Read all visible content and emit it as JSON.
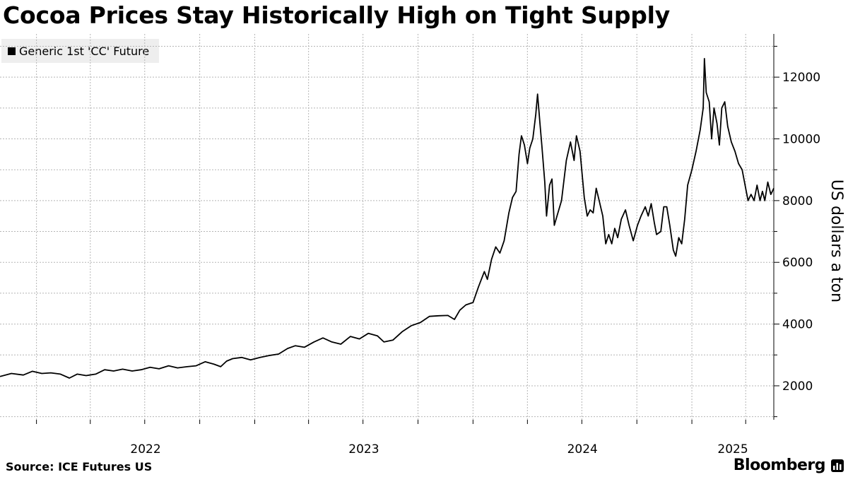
{
  "title": "Cocoa Prices Stay Historically High on Tight Supply",
  "source": "Source: ICE Futures US",
  "brand": "Bloomberg",
  "icons": {
    "brand": "bloomberg-chart-icon",
    "legend": "square-swatch-icon"
  },
  "colors": {
    "line": "#000000",
    "grid": "#b5b5b5",
    "legend_bg": "#eeeeee"
  },
  "chart_data": {
    "type": "line",
    "title": "Cocoa Prices Stay Historically High on Tight Supply",
    "ylabel": "US dollars a ton",
    "xlabel": "",
    "ylim": [
      900,
      13400
    ],
    "xlim": [
      "2021-11-01",
      "2025-05-18"
    ],
    "y_ticks": [
      2000,
      4000,
      6000,
      8000,
      10000,
      12000
    ],
    "x_tick_labels": [
      {
        "date": "2022-01-01",
        "label": "2022"
      },
      {
        "date": "2023-01-01",
        "label": "2023"
      },
      {
        "date": "2024-01-01",
        "label": "2024"
      },
      {
        "date": "2025-01-01",
        "label": "2025"
      }
    ],
    "grid": true,
    "legend": "top-left",
    "series": [
      {
        "name": "Generic 1st 'CC' Future",
        "points": [
          [
            "2021-11-01",
            2300
          ],
          [
            "2021-11-20",
            2400
          ],
          [
            "2021-12-10",
            2350
          ],
          [
            "2021-12-25",
            2470
          ],
          [
            "2022-01-10",
            2400
          ],
          [
            "2022-01-25",
            2420
          ],
          [
            "2022-02-10",
            2380
          ],
          [
            "2022-02-25",
            2250
          ],
          [
            "2022-03-10",
            2380
          ],
          [
            "2022-03-25",
            2330
          ],
          [
            "2022-04-10",
            2380
          ],
          [
            "2022-04-25",
            2520
          ],
          [
            "2022-05-10",
            2480
          ],
          [
            "2022-05-25",
            2540
          ],
          [
            "2022-06-10",
            2480
          ],
          [
            "2022-06-25",
            2520
          ],
          [
            "2022-07-10",
            2600
          ],
          [
            "2022-07-25",
            2550
          ],
          [
            "2022-08-10",
            2650
          ],
          [
            "2022-08-25",
            2580
          ],
          [
            "2022-09-10",
            2620
          ],
          [
            "2022-09-25",
            2650
          ],
          [
            "2022-10-10",
            2780
          ],
          [
            "2022-10-25",
            2700
          ],
          [
            "2022-11-05",
            2620
          ],
          [
            "2022-11-15",
            2800
          ],
          [
            "2022-11-25",
            2880
          ],
          [
            "2022-12-10",
            2920
          ],
          [
            "2022-12-25",
            2840
          ],
          [
            "2023-01-10",
            2920
          ],
          [
            "2023-01-25",
            2980
          ],
          [
            "2023-02-10",
            3030
          ],
          [
            "2023-02-25",
            3210
          ],
          [
            "2023-03-10",
            3300
          ],
          [
            "2023-03-25",
            3250
          ],
          [
            "2023-04-10",
            3420
          ],
          [
            "2023-04-25",
            3550
          ],
          [
            "2023-05-10",
            3420
          ],
          [
            "2023-05-25",
            3350
          ],
          [
            "2023-06-10",
            3600
          ],
          [
            "2023-06-25",
            3520
          ],
          [
            "2023-07-10",
            3700
          ],
          [
            "2023-07-25",
            3620
          ],
          [
            "2023-08-05",
            3420
          ],
          [
            "2023-08-20",
            3480
          ],
          [
            "2023-09-05",
            3760
          ],
          [
            "2023-09-20",
            3950
          ],
          [
            "2023-10-05",
            4050
          ],
          [
            "2023-10-20",
            4250
          ],
          [
            "2023-11-05",
            4270
          ],
          [
            "2023-11-20",
            4280
          ],
          [
            "2023-12-01",
            4150
          ],
          [
            "2023-12-10",
            4450
          ],
          [
            "2023-12-20",
            4620
          ],
          [
            "2024-01-01",
            4700
          ],
          [
            "2024-01-10",
            5200
          ],
          [
            "2024-01-20",
            5700
          ],
          [
            "2024-01-25",
            5450
          ],
          [
            "2024-02-01",
            6100
          ],
          [
            "2024-02-08",
            6500
          ],
          [
            "2024-02-15",
            6300
          ],
          [
            "2024-02-22",
            6700
          ],
          [
            "2024-03-01",
            7600
          ],
          [
            "2024-03-07",
            8100
          ],
          [
            "2024-03-13",
            8300
          ],
          [
            "2024-03-18",
            9500
          ],
          [
            "2024-03-22",
            10100
          ],
          [
            "2024-03-27",
            9800
          ],
          [
            "2024-04-01",
            9200
          ],
          [
            "2024-04-05",
            9700
          ],
          [
            "2024-04-10",
            10000
          ],
          [
            "2024-04-15",
            10800
          ],
          [
            "2024-04-18",
            11450
          ],
          [
            "2024-04-22",
            10500
          ],
          [
            "2024-04-25",
            9800
          ],
          [
            "2024-04-30",
            8600
          ],
          [
            "2024-05-03",
            7500
          ],
          [
            "2024-05-08",
            8500
          ],
          [
            "2024-05-12",
            8700
          ],
          [
            "2024-05-16",
            7200
          ],
          [
            "2024-05-22",
            7600
          ],
          [
            "2024-05-28",
            8000
          ],
          [
            "2024-06-05",
            9300
          ],
          [
            "2024-06-12",
            9900
          ],
          [
            "2024-06-18",
            9300
          ],
          [
            "2024-06-22",
            10100
          ],
          [
            "2024-06-28",
            9600
          ],
          [
            "2024-07-05",
            8100
          ],
          [
            "2024-07-10",
            7500
          ],
          [
            "2024-07-15",
            7700
          ],
          [
            "2024-07-20",
            7600
          ],
          [
            "2024-07-25",
            8400
          ],
          [
            "2024-07-30",
            8000
          ],
          [
            "2024-08-05",
            7500
          ],
          [
            "2024-08-10",
            6600
          ],
          [
            "2024-08-15",
            6900
          ],
          [
            "2024-08-20",
            6600
          ],
          [
            "2024-08-25",
            7100
          ],
          [
            "2024-08-30",
            6800
          ],
          [
            "2024-09-05",
            7400
          ],
          [
            "2024-09-12",
            7700
          ],
          [
            "2024-09-18",
            7200
          ],
          [
            "2024-09-25",
            6700
          ],
          [
            "2024-10-02",
            7200
          ],
          [
            "2024-10-08",
            7500
          ],
          [
            "2024-10-15",
            7800
          ],
          [
            "2024-10-20",
            7500
          ],
          [
            "2024-10-25",
            7900
          ],
          [
            "2024-10-30",
            7300
          ],
          [
            "2024-11-03",
            6900
          ],
          [
            "2024-11-10",
            7000
          ],
          [
            "2024-11-15",
            7800
          ],
          [
            "2024-11-20",
            7800
          ],
          [
            "2024-11-25",
            7200
          ],
          [
            "2024-12-01",
            6400
          ],
          [
            "2024-12-05",
            6200
          ],
          [
            "2024-12-10",
            6800
          ],
          [
            "2024-12-15",
            6600
          ],
          [
            "2024-12-20",
            7400
          ],
          [
            "2024-12-25",
            8500
          ],
          [
            "2025-01-01",
            9000
          ],
          [
            "2025-01-08",
            9600
          ],
          [
            "2025-01-15",
            10300
          ],
          [
            "2025-01-20",
            11000
          ],
          [
            "2025-01-22",
            12600
          ],
          [
            "2025-01-25",
            11500
          ],
          [
            "2025-01-30",
            11200
          ],
          [
            "2025-02-03",
            10000
          ],
          [
            "2025-02-07",
            11000
          ],
          [
            "2025-02-12",
            10500
          ],
          [
            "2025-02-16",
            9800
          ],
          [
            "2025-02-20",
            11000
          ],
          [
            "2025-02-25",
            11200
          ],
          [
            "2025-03-02",
            10400
          ],
          [
            "2025-03-08",
            9900
          ],
          [
            "2025-03-14",
            9600
          ],
          [
            "2025-03-20",
            9200
          ],
          [
            "2025-03-26",
            9000
          ],
          [
            "2025-04-01",
            8400
          ],
          [
            "2025-04-05",
            8000
          ],
          [
            "2025-04-10",
            8200
          ],
          [
            "2025-04-15",
            8000
          ],
          [
            "2025-04-20",
            8500
          ],
          [
            "2025-04-25",
            8000
          ],
          [
            "2025-04-29",
            8300
          ],
          [
            "2025-05-03",
            8000
          ],
          [
            "2025-05-08",
            8600
          ],
          [
            "2025-05-13",
            8200
          ],
          [
            "2025-05-18",
            8400
          ]
        ]
      }
    ]
  }
}
